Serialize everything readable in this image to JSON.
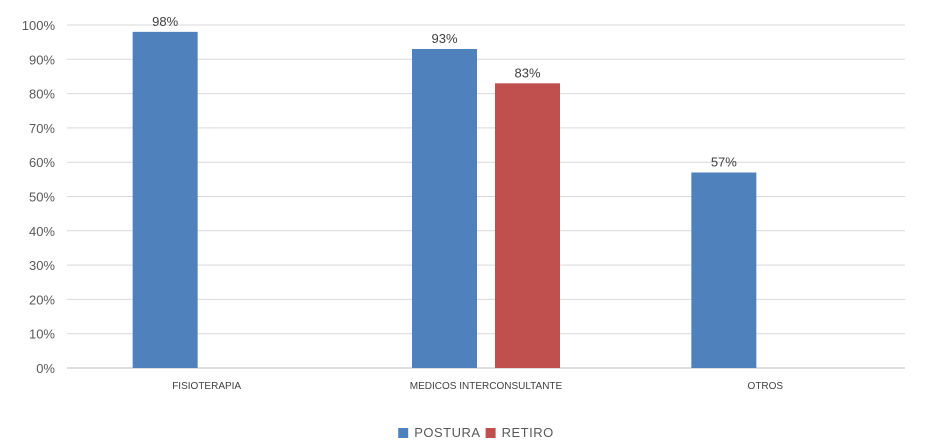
{
  "chart_data": {
    "type": "bar",
    "categories": [
      "FISIOTERAPIA",
      "MEDICOS INTERCONSULTANTE",
      "OTROS"
    ],
    "series": [
      {
        "name": "POSTURA",
        "color": "#4F81BD",
        "values": [
          98,
          93,
          57
        ],
        "labels": [
          "98%",
          "93%",
          "57%"
        ]
      },
      {
        "name": "RETIRO",
        "color": "#C0504D",
        "values": [
          null,
          83,
          null
        ],
        "labels": [
          "",
          "83%",
          ""
        ]
      }
    ],
    "ylim": [
      0,
      100
    ],
    "yticks": [
      0,
      10,
      20,
      30,
      40,
      50,
      60,
      70,
      80,
      90,
      100
    ],
    "ytick_labels": [
      "0%",
      "10%",
      "20%",
      "30%",
      "40%",
      "50%",
      "60%",
      "70%",
      "80%",
      "90%",
      "100%"
    ],
    "grid": true,
    "legend_position": "bottom",
    "title": "",
    "xlabel": "",
    "ylabel": ""
  }
}
